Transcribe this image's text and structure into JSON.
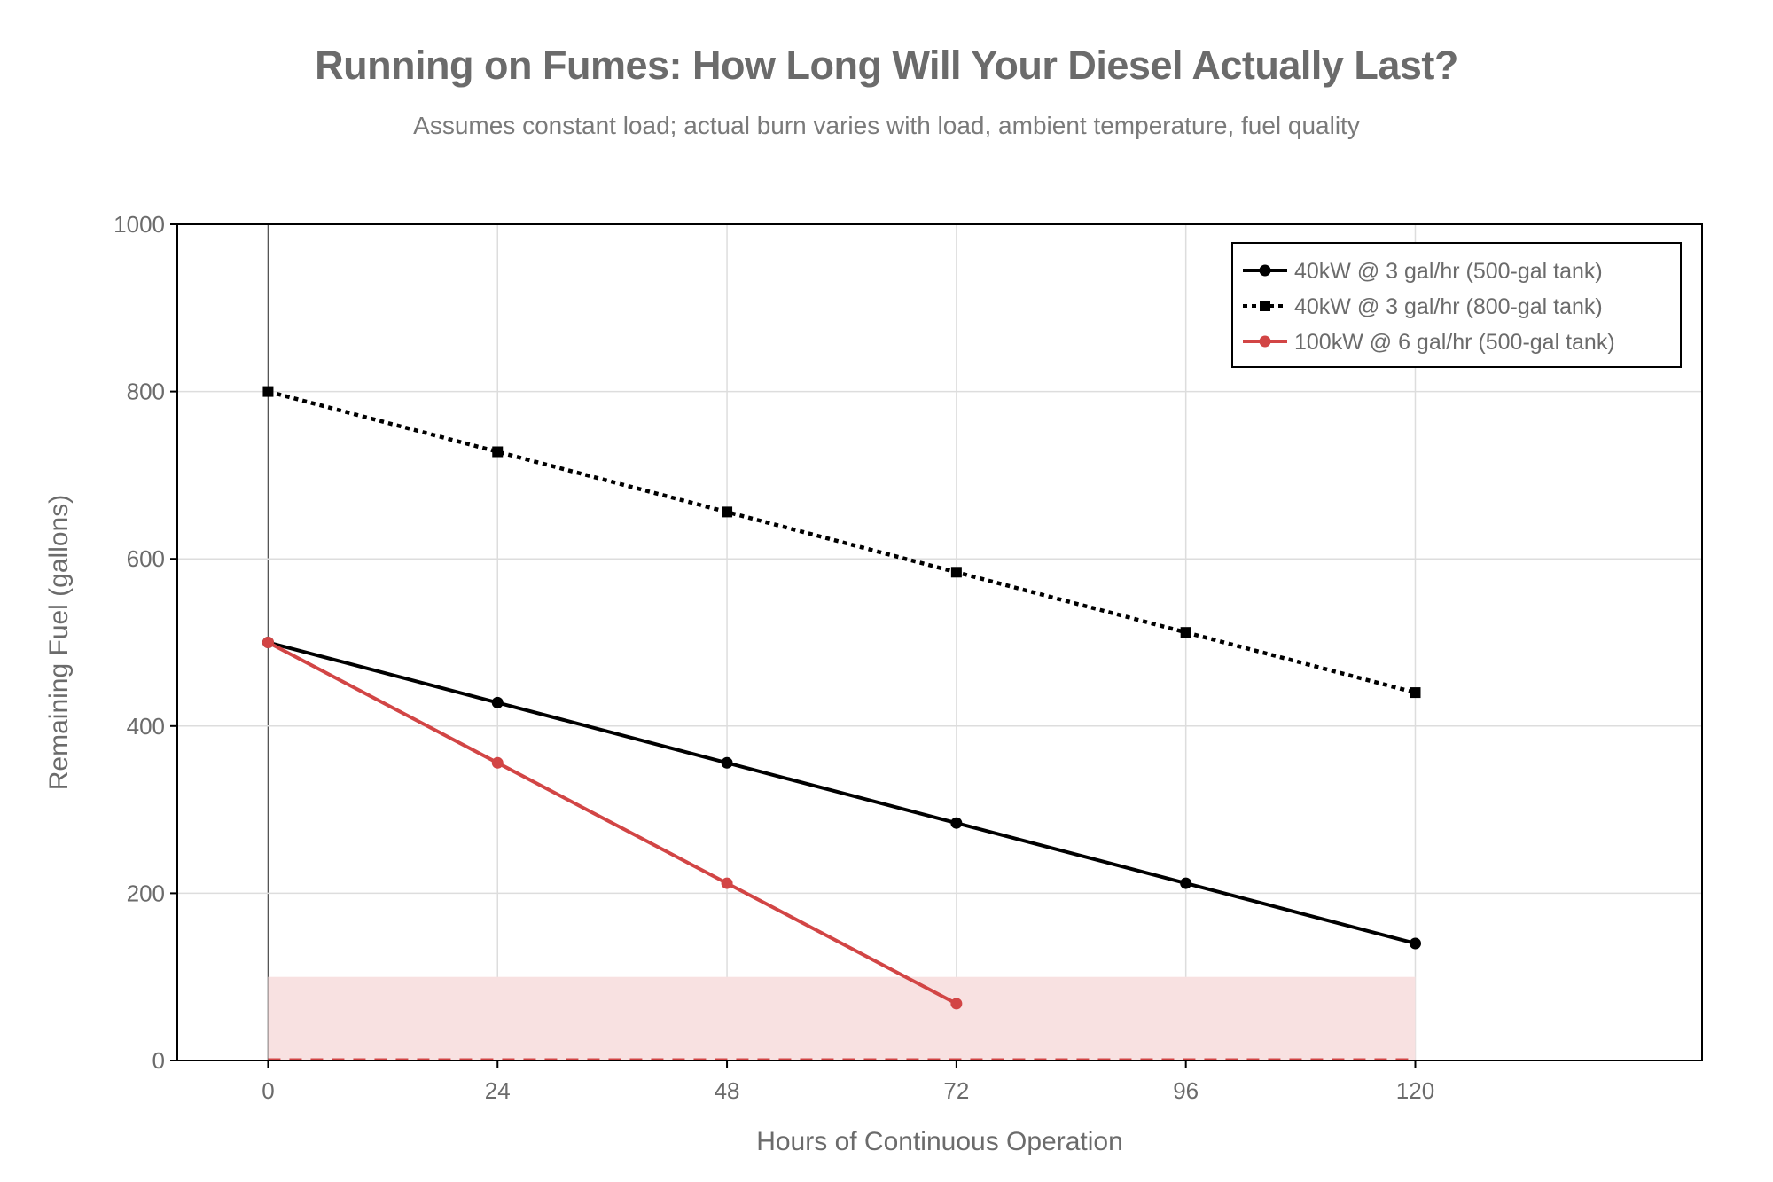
{
  "chart_data": {
    "type": "line",
    "title": "Running on Fumes: How Long Will Your Diesel Actually Last?",
    "subtitle": "Assumes constant load; actual burn varies with load, ambient temperature, fuel quality",
    "xlabel": "Hours of Continuous Operation",
    "ylabel": "Remaining Fuel (gallons)",
    "xlim": [
      -9.5,
      150
    ],
    "ylim": [
      0,
      1000
    ],
    "x_ticks": [
      0,
      24,
      48,
      72,
      96,
      120
    ],
    "y_ticks": [
      0,
      200,
      400,
      600,
      800,
      1000
    ],
    "grid": true,
    "legend_position": "top-right",
    "shaded_band": {
      "y_from": 0,
      "y_to": 100,
      "x_from": 0,
      "x_to": 120,
      "color": "#f8e1e1"
    },
    "threshold_line": {
      "y": 0,
      "color": "#d24545",
      "style": "dashed"
    },
    "series": [
      {
        "name": "40kW @ 3 gal/hr (500-gal tank)",
        "x": [
          0,
          24,
          48,
          72,
          96,
          120
        ],
        "y": [
          500,
          428,
          356,
          284,
          212,
          140
        ],
        "color": "#000000",
        "line_style": "solid",
        "marker": "circle"
      },
      {
        "name": "40kW @ 3 gal/hr (800-gal tank)",
        "x": [
          0,
          24,
          48,
          72,
          96,
          120
        ],
        "y": [
          800,
          728,
          656,
          584,
          512,
          440
        ],
        "color": "#000000",
        "line_style": "dotted",
        "marker": "square"
      },
      {
        "name": "100kW @ 6 gal/hr (500-gal tank)",
        "x": [
          0,
          24,
          48,
          72
        ],
        "y": [
          500,
          356,
          212,
          68
        ],
        "color": "#d24545",
        "line_style": "solid",
        "marker": "circle"
      }
    ]
  }
}
